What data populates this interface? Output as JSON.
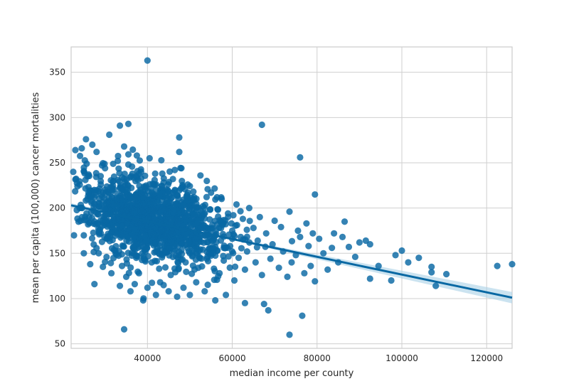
{
  "chart_data": {
    "type": "scatter",
    "title": "",
    "xlabel": "median income per county",
    "ylabel": "mean per capita (100,000) cancer mortalities",
    "xlim": [
      22000,
      126000
    ],
    "ylim": [
      45,
      378
    ],
    "x_ticks": [
      40000,
      60000,
      80000,
      100000,
      120000
    ],
    "x_tick_labels": [
      "40000",
      "60000",
      "80000",
      "100000",
      "120000"
    ],
    "y_ticks": [
      50,
      100,
      150,
      200,
      250,
      300,
      350
    ],
    "y_tick_labels": [
      "50",
      "100",
      "150",
      "200",
      "250",
      "300",
      "350"
    ],
    "grid": true,
    "point_color": "#0868a3",
    "regression": {
      "x": [
        22000,
        126000
      ],
      "y": [
        203,
        101
      ],
      "color": "#0868a3",
      "ci_color": "#a9d0e6"
    },
    "points": [
      [
        40000,
        363
      ],
      [
        67000,
        292
      ],
      [
        33500,
        291
      ],
      [
        35500,
        293
      ],
      [
        47500,
        278
      ],
      [
        76000,
        256
      ],
      [
        47500,
        262
      ],
      [
        34500,
        66
      ],
      [
        73500,
        60
      ],
      [
        76500,
        81
      ],
      [
        79500,
        215
      ],
      [
        68500,
        87
      ],
      [
        67500,
        94
      ],
      [
        63000,
        95
      ],
      [
        122500,
        136
      ],
      [
        126000,
        138
      ],
      [
        110500,
        127
      ],
      [
        108000,
        114
      ],
      [
        107000,
        135
      ],
      [
        107000,
        129
      ],
      [
        104000,
        145
      ],
      [
        101500,
        140
      ],
      [
        100000,
        153
      ],
      [
        98500,
        148
      ],
      [
        97500,
        120
      ],
      [
        94500,
        136
      ],
      [
        92500,
        160
      ],
      [
        92500,
        122
      ],
      [
        91500,
        164
      ],
      [
        90000,
        162
      ],
      [
        89000,
        146
      ],
      [
        87500,
        157
      ],
      [
        86500,
        185
      ],
      [
        86000,
        168
      ],
      [
        85000,
        140
      ],
      [
        84000,
        172
      ],
      [
        83500,
        156
      ],
      [
        82500,
        132
      ],
      [
        81500,
        150
      ],
      [
        80500,
        166
      ],
      [
        79500,
        119
      ],
      [
        79000,
        172
      ],
      [
        78500,
        136
      ],
      [
        78000,
        158
      ],
      [
        77500,
        183
      ],
      [
        77000,
        128
      ],
      [
        76000,
        168
      ],
      [
        75500,
        175
      ],
      [
        75000,
        148
      ],
      [
        74000,
        140
      ],
      [
        73500,
        196
      ],
      [
        73000,
        124
      ],
      [
        72000,
        152
      ],
      [
        71500,
        179
      ],
      [
        71000,
        134
      ],
      [
        70000,
        186
      ],
      [
        69500,
        160
      ],
      [
        69000,
        144
      ],
      [
        68000,
        172
      ],
      [
        67000,
        126
      ],
      [
        66500,
        190
      ],
      [
        66000,
        164
      ],
      [
        65500,
        140
      ],
      [
        65000,
        178
      ],
      [
        64000,
        200
      ],
      [
        63500,
        152
      ],
      [
        63000,
        132
      ],
      [
        62500,
        188
      ],
      [
        62000,
        168
      ],
      [
        61500,
        145
      ],
      [
        61000,
        204
      ],
      [
        60500,
        120
      ],
      [
        60000,
        175
      ],
      [
        59500,
        158
      ],
      [
        59000,
        194
      ],
      [
        58500,
        104
      ],
      [
        58000,
        142
      ],
      [
        57500,
        210
      ],
      [
        57000,
        128
      ],
      [
        56500,
        182
      ],
      [
        56000,
        98
      ],
      [
        55500,
        164
      ],
      [
        55000,
        217
      ],
      [
        54500,
        150
      ],
      [
        54000,
        230
      ],
      [
        53500,
        108
      ],
      [
        53000,
        192
      ],
      [
        52500,
        236
      ],
      [
        52000,
        134
      ],
      [
        51500,
        118
      ],
      [
        51000,
        212
      ],
      [
        50500,
        160
      ],
      [
        50000,
        104
      ],
      [
        49500,
        226
      ],
      [
        49000,
        140
      ],
      [
        48500,
        112
      ],
      [
        48000,
        244
      ],
      [
        47500,
        186
      ],
      [
        47000,
        102
      ],
      [
        46500,
        154
      ],
      [
        46000,
        232
      ],
      [
        45500,
        126
      ],
      [
        45000,
        108
      ],
      [
        44500,
        208
      ],
      [
        44000,
        170
      ],
      [
        43500,
        238
      ],
      [
        43000,
        118
      ],
      [
        42500,
        196
      ],
      [
        42000,
        104
      ],
      [
        41500,
        226
      ],
      [
        41000,
        140
      ],
      [
        40500,
        255
      ],
      [
        40000,
        112
      ],
      [
        39500,
        184
      ],
      [
        39000,
        98
      ],
      [
        38500,
        240
      ],
      [
        38000,
        128
      ],
      [
        37500,
        258
      ],
      [
        37000,
        116
      ],
      [
        36500,
        212
      ],
      [
        36000,
        108
      ],
      [
        35500,
        248
      ],
      [
        35000,
        124
      ],
      [
        34500,
        268
      ],
      [
        34000,
        136
      ],
      [
        33500,
        114
      ],
      [
        33000,
        252
      ],
      [
        32500,
        150
      ],
      [
        32000,
        230
      ],
      [
        31500,
        128
      ],
      [
        31000,
        281
      ],
      [
        30500,
        166
      ],
      [
        30000,
        244
      ],
      [
        29500,
        135
      ],
      [
        29000,
        226
      ],
      [
        28500,
        150
      ],
      [
        28000,
        262
      ],
      [
        27500,
        116
      ],
      [
        27000,
        270
      ],
      [
        26500,
        138
      ],
      [
        26000,
        182
      ],
      [
        25500,
        276
      ],
      [
        25000,
        150
      ],
      [
        24500,
        266
      ],
      [
        24000,
        200
      ],
      [
        23500,
        224
      ],
      [
        23000,
        264
      ],
      [
        22500,
        240
      ],
      [
        29000,
        172
      ],
      [
        33000,
        176
      ],
      [
        37000,
        166
      ],
      [
        42000,
        152
      ],
      [
        46000,
        146
      ],
      [
        50000,
        150
      ],
      [
        54000,
        144
      ],
      [
        58000,
        156
      ],
      [
        32000,
        198
      ],
      [
        36000,
        194
      ],
      [
        40000,
        190
      ],
      [
        44000,
        186
      ],
      [
        48000,
        178
      ],
      [
        52000,
        174
      ],
      [
        56000,
        170
      ],
      [
        60000,
        166
      ],
      [
        38000,
        172
      ],
      [
        42000,
        176
      ],
      [
        46000,
        168
      ],
      [
        50000,
        186
      ],
      [
        54000,
        172
      ],
      [
        34000,
        184
      ]
    ]
  }
}
